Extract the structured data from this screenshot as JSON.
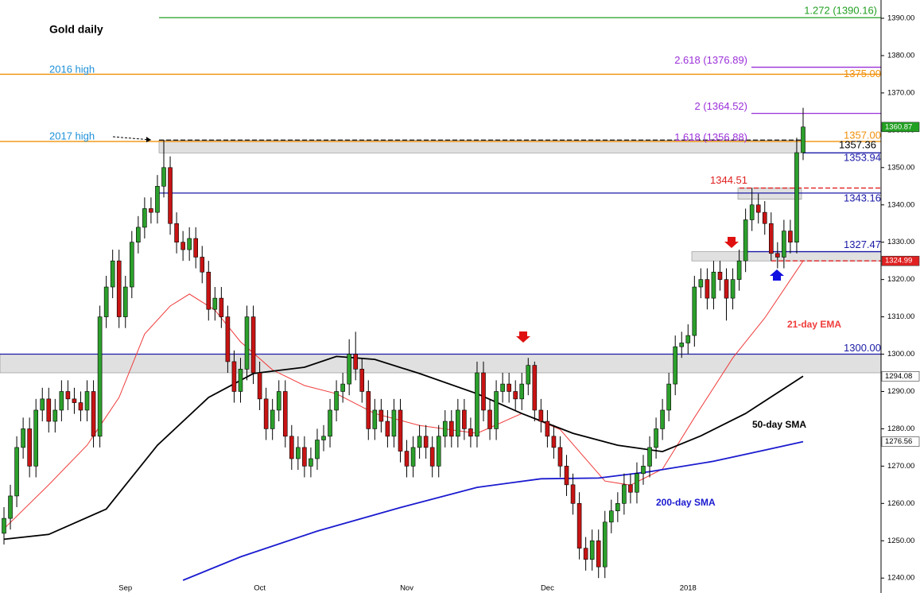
{
  "chart_data": {
    "type": "candlestick",
    "title": "Gold daily",
    "annotations": [
      "2016 high",
      "2017 high"
    ],
    "categories": [
      null,
      null,
      null,
      null,
      null,
      null,
      null,
      null,
      null,
      null,
      null,
      null,
      null,
      null,
      null,
      null,
      null,
      null,
      null,
      "Sep",
      null,
      null,
      null,
      null,
      null,
      null,
      null,
      null,
      null,
      null,
      null,
      null,
      null,
      null,
      null,
      null,
      null,
      null,
      null,
      null,
      "Oct",
      null,
      null,
      null,
      null,
      null,
      null,
      null,
      null,
      null,
      null,
      null,
      null,
      null,
      null,
      null,
      null,
      null,
      null,
      null,
      null,
      null,
      null,
      "Nov",
      null,
      null,
      null,
      null,
      null,
      null,
      null,
      null,
      null,
      null,
      null,
      null,
      null,
      null,
      null,
      null,
      null,
      null,
      null,
      null,
      null,
      "Dec",
      null,
      null,
      null,
      null,
      null,
      null,
      null,
      null,
      null,
      null,
      null,
      null,
      null,
      null,
      null,
      null,
      null,
      null,
      null,
      null,
      null,
      "2018",
      null,
      null,
      null,
      null,
      null,
      null,
      null,
      null,
      null,
      null,
      null,
      null,
      null,
      null,
      null,
      null,
      null,
      null
    ],
    "open": [
      1252,
      1256,
      1262,
      1275,
      1280,
      1270,
      1285,
      1288,
      1282,
      1285,
      1290,
      1288,
      1287,
      1285,
      1290,
      1278,
      1310,
      1318,
      1325,
      1310,
      1318,
      1330,
      1334,
      1339,
      1338,
      1345,
      1350,
      1335,
      1330,
      1328,
      1331,
      1326,
      1322,
      1312,
      1315,
      1310,
      1298,
      1290,
      1296,
      1310,
      1295,
      1288,
      1280,
      1285,
      1290,
      1278,
      1272,
      1275,
      1270,
      1272,
      1277,
      1278,
      1285,
      1290,
      1292,
      1300,
      1296,
      1290,
      1280,
      1285,
      1282,
      1278,
      1285,
      1274,
      1270,
      1275,
      1278,
      1275,
      1270,
      1278,
      1282,
      1278,
      1285,
      1280,
      1278,
      1295,
      1285,
      1280,
      1290,
      1292,
      1290,
      1288,
      1292,
      1297,
      1285,
      1282,
      1278,
      1275,
      1270,
      1265,
      1260,
      1248,
      1245,
      1250,
      1243,
      1255,
      1258,
      1260,
      1265,
      1263,
      1268,
      1270,
      1275,
      1280,
      1285,
      1292,
      1302,
      1303,
      1305,
      1318,
      1320,
      1315,
      1322,
      1320,
      1315,
      1320,
      1325,
      1336,
      1340,
      1338,
      1335,
      1327,
      1326,
      1333,
      1330,
      1354
    ],
    "high": [
      1259,
      1265,
      1278,
      1283,
      1283,
      1288,
      1291,
      1291,
      1288,
      1293,
      1293,
      1291,
      1290,
      1293,
      1293,
      1313,
      1321,
      1328,
      1328,
      1321,
      1333,
      1337,
      1342,
      1342,
      1348,
      1357.36,
      1353,
      1338,
      1333,
      1334,
      1334,
      1329,
      1325,
      1318,
      1318,
      1313,
      1301,
      1299,
      1313,
      1313,
      1298,
      1291,
      1288,
      1293,
      1293,
      1281,
      1278,
      1278,
      1275,
      1280,
      1281,
      1288,
      1293,
      1295,
      1304,
      1306,
      1299,
      1293,
      1288,
      1288,
      1285,
      1288,
      1288,
      1277,
      1278,
      1281,
      1281,
      1278,
      1281,
      1285,
      1285,
      1288,
      1288,
      1283,
      1298,
      1298,
      1288,
      1293,
      1295,
      1295,
      1293,
      1295,
      1299,
      1298,
      1288,
      1285,
      1281,
      1278,
      1273,
      1268,
      1263,
      1251,
      1253,
      1253,
      1258,
      1261,
      1263,
      1268,
      1268,
      1271,
      1273,
      1278,
      1283,
      1288,
      1295,
      1305,
      1306,
      1308,
      1321,
      1323,
      1323,
      1325,
      1325,
      1323,
      1323,
      1328,
      1339,
      1344.51,
      1343,
      1341,
      1338,
      1330,
      1336,
      1336,
      1358,
      1366
    ],
    "low": [
      1249,
      1253,
      1259,
      1272,
      1267,
      1267,
      1282,
      1279,
      1279,
      1282,
      1285,
      1284,
      1282,
      1282,
      1275,
      1275,
      1307,
      1315,
      1307,
      1307,
      1315,
      1327,
      1331,
      1335,
      1335,
      1342,
      1332,
      1327,
      1325,
      1325,
      1323,
      1319,
      1309,
      1309,
      1307,
      1295,
      1287,
      1287,
      1293,
      1292,
      1285,
      1277,
      1277,
      1282,
      1275,
      1269,
      1269,
      1267,
      1267,
      1269,
      1274,
      1275,
      1282,
      1287,
      1289,
      1293,
      1287,
      1277,
      1277,
      1279,
      1275,
      1275,
      1271,
      1267,
      1267,
      1272,
      1272,
      1267,
      1267,
      1275,
      1275,
      1275,
      1277,
      1275,
      1275,
      1282,
      1277,
      1277,
      1287,
      1287,
      1285,
      1285,
      1289,
      1282,
      1279,
      1275,
      1272,
      1267,
      1262,
      1257,
      1245,
      1242,
      1242,
      1240,
      1240,
      1252,
      1255,
      1257,
      1260,
      1260,
      1265,
      1267,
      1272,
      1277,
      1282,
      1289,
      1299,
      1300,
      1302,
      1315,
      1312,
      1312,
      1317,
      1309,
      1312,
      1317,
      1322,
      1333,
      1335,
      1332,
      1324.99,
      1323,
      1323,
      1327,
      1327,
      1352
    ],
    "close": [
      1256,
      1262,
      1275,
      1280,
      1270,
      1285,
      1288,
      1282,
      1285,
      1290,
      1288,
      1287,
      1285,
      1290,
      1278,
      1310,
      1318,
      1325,
      1310,
      1318,
      1330,
      1334,
      1339,
      1338,
      1345,
      1350,
      1335,
      1330,
      1328,
      1331,
      1326,
      1322,
      1312,
      1315,
      1310,
      1298,
      1290,
      1296,
      1310,
      1295,
      1288,
      1280,
      1285,
      1290,
      1278,
      1272,
      1275,
      1270,
      1272,
      1277,
      1278,
      1285,
      1290,
      1292,
      1300,
      1296,
      1290,
      1280,
      1285,
      1282,
      1278,
      1285,
      1274,
      1270,
      1275,
      1278,
      1275,
      1270,
      1278,
      1282,
      1278,
      1285,
      1280,
      1278,
      1295,
      1285,
      1280,
      1290,
      1292,
      1290,
      1288,
      1292,
      1297,
      1285,
      1282,
      1278,
      1275,
      1270,
      1265,
      1260,
      1248,
      1245,
      1250,
      1243,
      1255,
      1258,
      1260,
      1265,
      1263,
      1268,
      1270,
      1275,
      1280,
      1285,
      1292,
      1302,
      1303,
      1305,
      1318,
      1320,
      1315,
      1322,
      1320,
      1315,
      1320,
      1325,
      1336,
      1340,
      1338,
      1335,
      1327,
      1326,
      1333,
      1330,
      1354,
      1360.87
    ],
    "up_color": "#2ca02c",
    "down_color": "#c81414",
    "moving_averages": [
      {
        "name": "21-day EMA",
        "color": "#f03c3c",
        "x": [
          0,
          7,
          13,
          18,
          22,
          26,
          29,
          33,
          37,
          42,
          47,
          52,
          58,
          65,
          74,
          81,
          87,
          94,
          98,
          103,
          108,
          114,
          119,
          125
        ],
        "values": [
          1253.2,
          1265,
          1275.6,
          1288.4,
          1305.4,
          1312.9,
          1316.1,
          1311.8,
          1303.3,
          1295.8,
          1291.6,
          1289.4,
          1284.1,
          1280.9,
          1278.8,
          1284.1,
          1279.8,
          1266,
          1264.9,
          1269.2,
          1283,
          1299,
          1309.7,
          1324.99
        ]
      },
      {
        "name": "50-day SMA",
        "color": "#000000",
        "x": [
          0,
          7,
          16,
          24,
          32,
          39,
          47,
          52,
          58,
          65,
          74,
          81,
          89,
          96,
          103,
          109,
          116,
          125
        ],
        "values": [
          1250.4,
          1251.7,
          1258.5,
          1275.6,
          1288.4,
          1294.8,
          1296.5,
          1299.4,
          1298.6,
          1294.8,
          1289.4,
          1284.1,
          1278.8,
          1275.6,
          1273.9,
          1278.1,
          1284.1,
          1294.08
        ]
      },
      {
        "name": "200-day SMA",
        "color": "#1a1ad0",
        "x": [
          28,
          37,
          49,
          62,
          74,
          84,
          93,
          101,
          111,
          119,
          125
        ],
        "values": [
          1239.4,
          1245.7,
          1252.6,
          1258.9,
          1264.3,
          1266.6,
          1266.8,
          1268.5,
          1271.3,
          1274.3,
          1276.56
        ]
      }
    ],
    "levels": [
      {
        "value": 1390.16,
        "label": "1.272 (1390.16)",
        "color": "#22a022"
      },
      {
        "value": 1376.89,
        "label": "2.618 (1376.89)",
        "color": "#9b30d9"
      },
      {
        "value": 1375,
        "label": "1375.00",
        "color": "#f0900a"
      },
      {
        "value": 1364.52,
        "label": "2 (1364.52)",
        "color": "#9b30d9"
      },
      {
        "value": 1357,
        "label": "1357.00",
        "color": "#f0900a"
      },
      {
        "value": 1356.88,
        "label": "1.618 (1356.88)",
        "color": "#9b30d9"
      },
      {
        "value": 1357.36,
        "label": "1357.36",
        "color": "#000000"
      },
      {
        "value": 1353.94,
        "label": "1353.94",
        "color": "#1a1aa6"
      },
      {
        "value": 1344.51,
        "label": "1344.51",
        "color": "#e02020"
      },
      {
        "value": 1343.16,
        "label": "1343.16",
        "color": "#1a1aa6"
      },
      {
        "value": 1327.47,
        "label": "1327.47",
        "color": "#1a1aa6"
      },
      {
        "value": 1324.99,
        "color": "#e02020"
      },
      {
        "value": 1300,
        "label": "1300.00",
        "color": "#1a1aa6"
      }
    ],
    "zones": [
      [
        1357.36,
        1353.94
      ],
      [
        1300,
        1295
      ],
      [
        1344.51,
        1341.5
      ],
      [
        1327.47,
        1324.99
      ]
    ],
    "price_tags": [
      {
        "value": 1360.87,
        "color": "#22a022"
      },
      {
        "value": 1324.99,
        "color": "#e02020"
      },
      {
        "value": 1294.08,
        "color": "#ffffff"
      },
      {
        "value": 1276.56,
        "color": "#ffffff"
      }
    ],
    "ylim": [
      1236,
      1394.9
    ],
    "yticks": [
      {
        "value": 1240,
        "label": "1240.00"
      },
      {
        "value": 1250,
        "label": "1250.00"
      },
      {
        "value": 1260,
        "label": "1260.00"
      },
      {
        "value": 1270,
        "label": "1270.00"
      },
      {
        "value": 1280,
        "label": "1280.00"
      },
      {
        "value": 1290,
        "label": "1290.00"
      },
      {
        "value": 1300,
        "label": "1300.00"
      },
      {
        "value": 1310,
        "label": "1310.00"
      },
      {
        "value": 1320,
        "label": "1320.00"
      },
      {
        "value": 1330,
        "label": "1330.00"
      },
      {
        "value": 1340,
        "label": "1340.00"
      },
      {
        "value": 1350,
        "label": "1350.00"
      },
      {
        "value": 1360,
        "label": "1360.00"
      },
      {
        "value": 1370,
        "label": "1370.00"
      },
      {
        "value": 1380,
        "label": "1380.00"
      },
      {
        "value": 1390,
        "label": "1390.00"
      }
    ]
  }
}
